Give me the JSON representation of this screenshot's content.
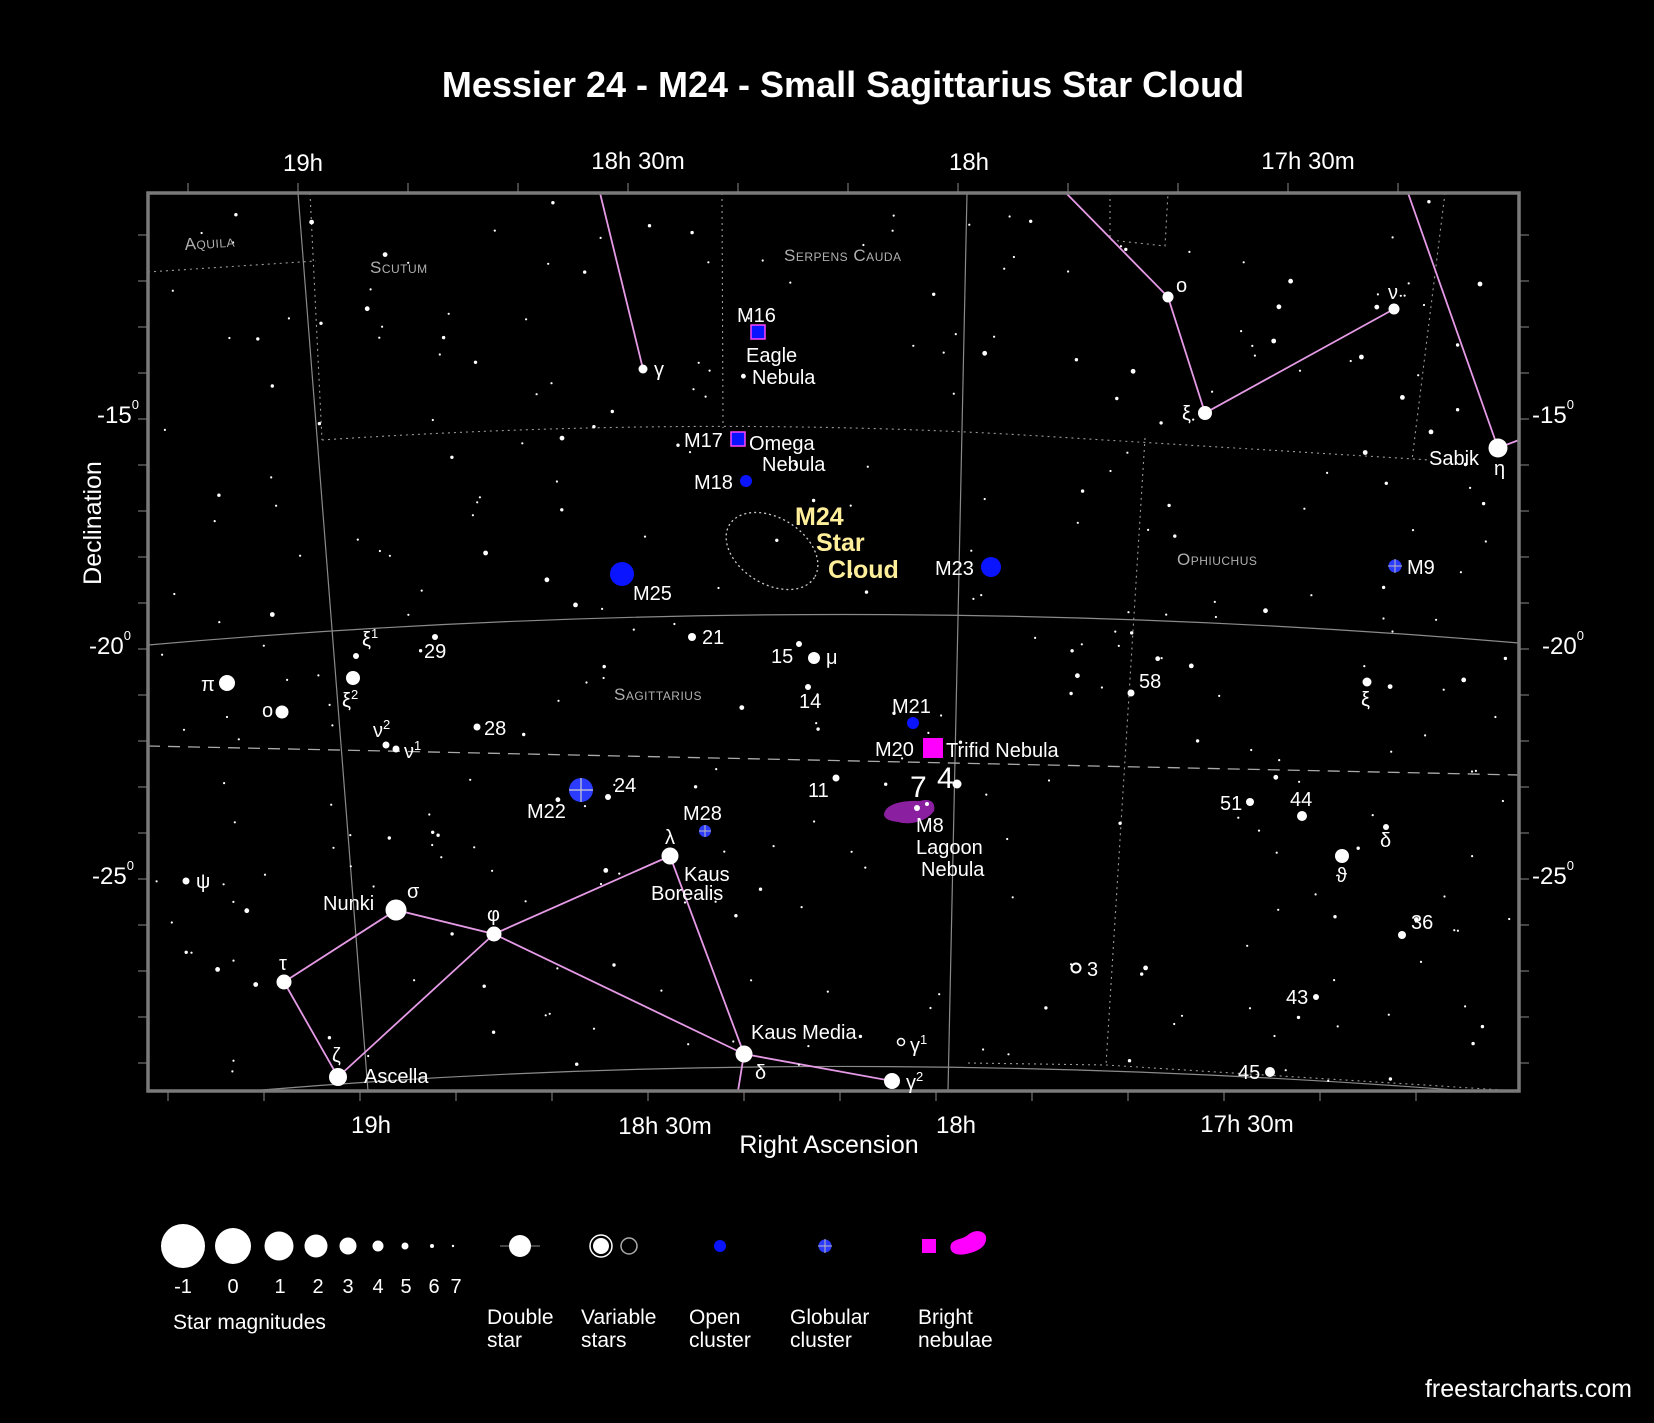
{
  "title": "Messier 24 - M24 - Small Sagittarius Star Cloud",
  "colors": {
    "background": "#000000",
    "frame": "#7a7a7a",
    "constellation_line": "#e59ae5",
    "boundary": "#9a9a9a",
    "grid": "#8a8a8a",
    "open_cluster": "#0a14ff",
    "globular_cluster": "#2b3bff",
    "bright_nebula": "#ff00ff",
    "lagoon_nebula": "#8a1fa0",
    "highlight": "#ffef9a"
  },
  "axes": {
    "top_ra_labels": [
      "19h",
      "18h 30m",
      "18h",
      "17h 30m"
    ],
    "bottom_ra_labels": [
      "19h",
      "18h 30m",
      "18h",
      "17h 30m"
    ],
    "dec_labels": [
      {
        "value": "-15",
        "exp": "0"
      },
      {
        "value": "-20",
        "exp": "0"
      },
      {
        "value": "-25",
        "exp": "0"
      }
    ],
    "xlabel": "Right Ascension",
    "ylabel": "Declination"
  },
  "constellations": {
    "aquila": "Aquila",
    "scutum": "Scutum",
    "serpens": "Serpens Cauda",
    "sagittarius": "Sagittarius",
    "ophiuchus": "Ophiuchus"
  },
  "objects": {
    "m16": "M16",
    "m16_name_1": "Eagle",
    "m16_name_2": "Nebula",
    "m17": "M17",
    "m17_name_1": "Omega",
    "m17_name_2": "Nebula",
    "m18": "M18",
    "m24_1": "M24",
    "m24_2": "Star",
    "m24_3": "Cloud",
    "m23": "M23",
    "m25": "M25",
    "m9": "M9",
    "m21": "M21",
    "m20": "M20",
    "m20_name": "Trifid Nebula",
    "m22": "M22",
    "m28": "M28",
    "m8": "M8",
    "m8_name_1": "Lagoon",
    "m8_name_2": "Nebula",
    "ngc_7": "7",
    "ngc_4": "4"
  },
  "stars": {
    "gamma_sct": "γ",
    "omicron_oph": "o",
    "nu_oph": "ν",
    "xi_oph": "ξ",
    "sabik": "Sabik",
    "eta_oph": "η",
    "xi1": "ξ",
    "xi1_sup": "1",
    "n29": "29",
    "n21": "21",
    "n15": "15",
    "mu": "μ",
    "pi": "π",
    "omicron_sgr": "o",
    "xi2": "ξ",
    "xi2_sup": "2",
    "nu2": "ν",
    "nu2_sup": "2",
    "nu1": "ν",
    "nu1_sup": "1",
    "n28": "28",
    "n14": "14",
    "n58": "58",
    "xi_right": "ξ",
    "n24": "24",
    "n11": "11",
    "n51": "51",
    "n44": "44",
    "delta_right": "δ",
    "theta": "ϑ",
    "psi": "ψ",
    "lambda": "λ",
    "kaus_borealis_1": "Kaus",
    "kaus_borealis_2": "Borealis",
    "nunki": "Nunki",
    "sigma": "σ",
    "phi": "φ",
    "n36": "36",
    "tau": "τ",
    "n3": "3",
    "n43": "43",
    "kaus_media": "Kaus Media",
    "gamma1": "γ",
    "gamma1_sup": "1",
    "zeta": "ζ",
    "ascella": "Ascella",
    "delta": "δ",
    "gamma2": "γ",
    "gamma2_sup": "2",
    "n45": "45"
  },
  "legend": {
    "magnitudes": [
      "-1",
      "0",
      "1",
      "2",
      "3",
      "4",
      "5",
      "6",
      "7"
    ],
    "star_magnitudes": "Star magnitudes",
    "double_1": "Double",
    "double_2": "star",
    "variable_1": "Variable",
    "variable_2": "stars",
    "open_1": "Open",
    "open_2": "cluster",
    "globular_1": "Globular",
    "globular_2": "cluster",
    "bright_1": "Bright",
    "bright_2": "nebulae"
  },
  "credit": "freestarcharts.com"
}
